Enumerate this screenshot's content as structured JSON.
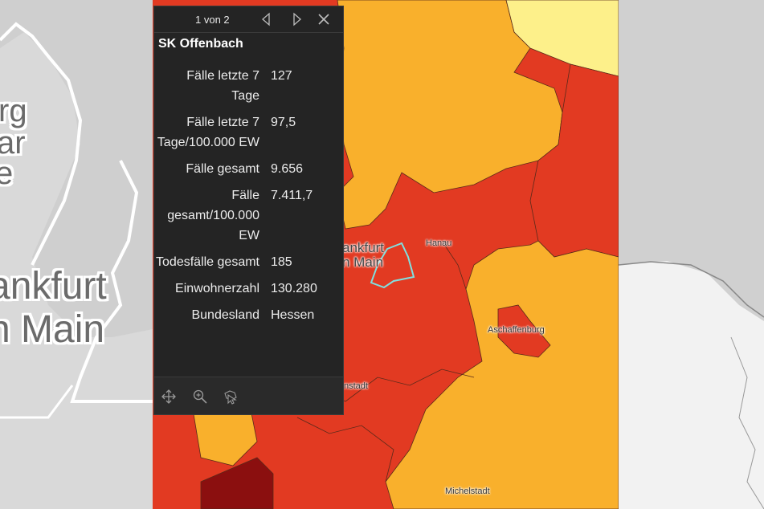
{
  "map": {
    "big_labels": {
      "left_line1": "ankfurt",
      "left_line2": "n Main",
      "partial_rg": "rg",
      "partial_ar": "ar",
      "partial_e": "e"
    },
    "city_labels": {
      "frankfurt_line1": "ankfurt",
      "frankfurt_line2": "n Main",
      "hanau": "Hanau",
      "aschaffenburg": "Aschaffenburg",
      "darmstadt": "nstadt",
      "michelstadt": "Michelstadt"
    },
    "colors": {
      "red": "#e23a22",
      "dark_red": "#8b0f0f",
      "orange": "#f9b02c",
      "light_yellow": "#fdf08a",
      "highlight": "#7fe0e0"
    }
  },
  "popup": {
    "pager": "1 von 2",
    "title": "SK Offenbach",
    "attributes": [
      {
        "key": "Fälle letzte 7 Tage",
        "value": "127"
      },
      {
        "key": "Fälle letzte 7 Tage/100.000 EW",
        "value": "97,5"
      },
      {
        "key": "Fälle gesamt",
        "value": "9.656"
      },
      {
        "key": "Fälle gesamt/100.000 EW",
        "value": "7.411,7"
      },
      {
        "key": "Todesfälle gesamt",
        "value": "185"
      },
      {
        "key": "Einwohnerzahl",
        "value": "130.280"
      },
      {
        "key": "Bundesland",
        "value": "Hessen"
      }
    ],
    "icons": {
      "prev": "chevron-left-icon",
      "next": "chevron-right-icon",
      "close": "close-icon",
      "pan": "move-icon",
      "zoom": "zoom-in-icon",
      "select": "select-feature-icon"
    }
  }
}
